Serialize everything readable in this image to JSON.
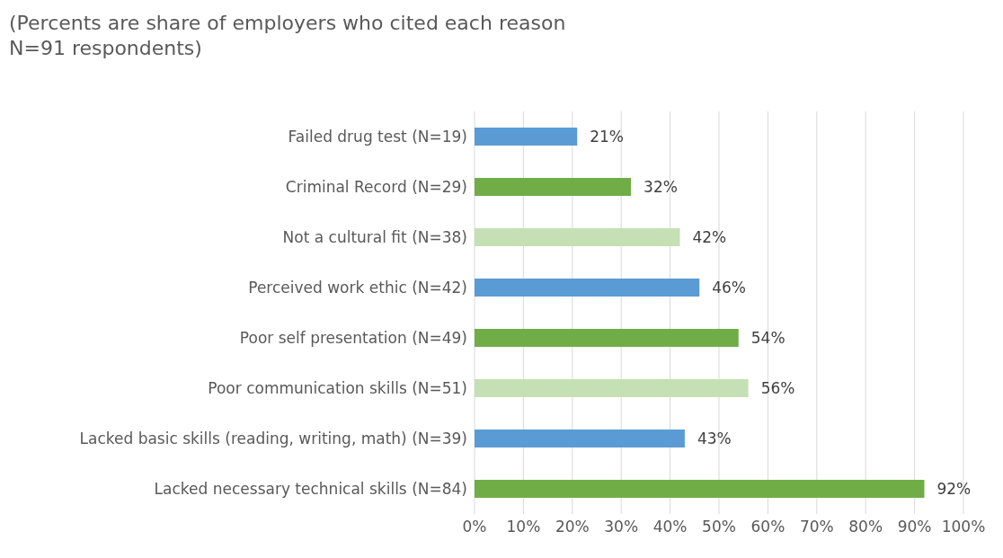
{
  "chart_data": {
    "type": "bar",
    "orientation": "horizontal",
    "title": "(Percents are share of employers who cited each reason\nN=91 respondents)",
    "categories": [
      "Failed drug test (N=19)",
      "Criminal Record (N=29)",
      "Not a cultural fit (N=38)",
      "Perceived work ethic (N=42)",
      "Poor self presentation (N=49)",
      "Poor communication skills (N=51)",
      "Lacked basic skills (reading, writing, math) (N=39)",
      "Lacked necessary technical skills (N=84)"
    ],
    "values": [
      21,
      32,
      42,
      46,
      54,
      56,
      43,
      92
    ],
    "colors": [
      "#5b9bd5",
      "#70ad47",
      "#c5e0b4",
      "#5b9bd5",
      "#70ad47",
      "#c5e0b4",
      "#5b9bd5",
      "#70ad47"
    ],
    "value_labels": [
      "21%",
      "32%",
      "42%",
      "46%",
      "54%",
      "56%",
      "43%",
      "92%"
    ],
    "xlim": [
      0,
      100
    ],
    "xticks": [
      {
        "value": 0,
        "label": "0%"
      },
      {
        "value": 10,
        "label": "10%"
      },
      {
        "value": 20,
        "label": "20%"
      },
      {
        "value": 30,
        "label": "30%"
      },
      {
        "value": 40,
        "label": "40%"
      },
      {
        "value": 50,
        "label": "50%"
      },
      {
        "value": 60,
        "label": "60%"
      },
      {
        "value": 70,
        "label": "70%"
      },
      {
        "value": 80,
        "label": "80%"
      },
      {
        "value": 90,
        "label": "90%"
      },
      {
        "value": 100,
        "label": "100%"
      }
    ],
    "grid": "x"
  }
}
